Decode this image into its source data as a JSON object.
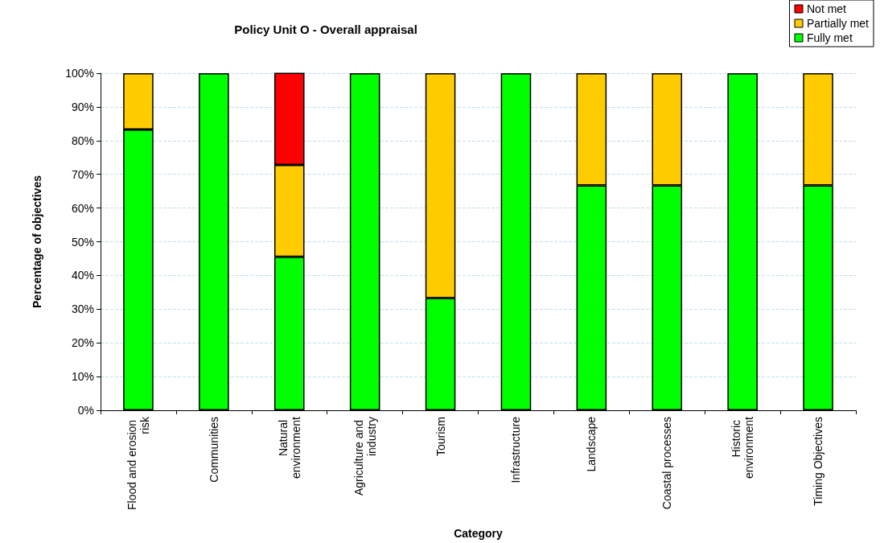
{
  "chart_data": {
    "type": "bar",
    "title": "Policy Unit O - Overall appraisal",
    "xlabel": "Category",
    "ylabel": "Percentage of objectives",
    "categories": [
      "Flood and erosion risk",
      "Communities",
      "Natural environment",
      "Agriculture and industry",
      "Tourism",
      "Infrastructure",
      "Landscape",
      "Coastal processes",
      "Historic environment",
      "Timing Objectives"
    ],
    "series": [
      {
        "name": "Fully met",
        "color": "#00ff00",
        "values": [
          83.3,
          100,
          45.5,
          100,
          33.3,
          100,
          66.7,
          66.7,
          100,
          66.7
        ]
      },
      {
        "name": "Partially met",
        "color": "#ffcc00",
        "values": [
          16.7,
          null,
          27.3,
          null,
          66.7,
          null,
          33.3,
          33.3,
          null,
          33.3
        ]
      },
      {
        "name": "Not met",
        "color": "#ff0000",
        "values": [
          null,
          null,
          27.3,
          null,
          null,
          null,
          null,
          null,
          null,
          null
        ]
      }
    ],
    "stacked": true,
    "ylim": [
      0,
      100
    ],
    "yticks": [
      {
        "value": 0,
        "label": "0%"
      },
      {
        "value": 10,
        "label": "10%"
      },
      {
        "value": 20,
        "label": "20%"
      },
      {
        "value": 30,
        "label": "30%"
      },
      {
        "value": 40,
        "label": "40%"
      },
      {
        "value": 50,
        "label": "50%"
      },
      {
        "value": 60,
        "label": "60%"
      },
      {
        "value": 70,
        "label": "70%"
      },
      {
        "value": 80,
        "label": "80%"
      },
      {
        "value": 90,
        "label": "90%"
      },
      {
        "value": 100,
        "label": "100%"
      }
    ],
    "grid": "y",
    "legend": "top right"
  }
}
